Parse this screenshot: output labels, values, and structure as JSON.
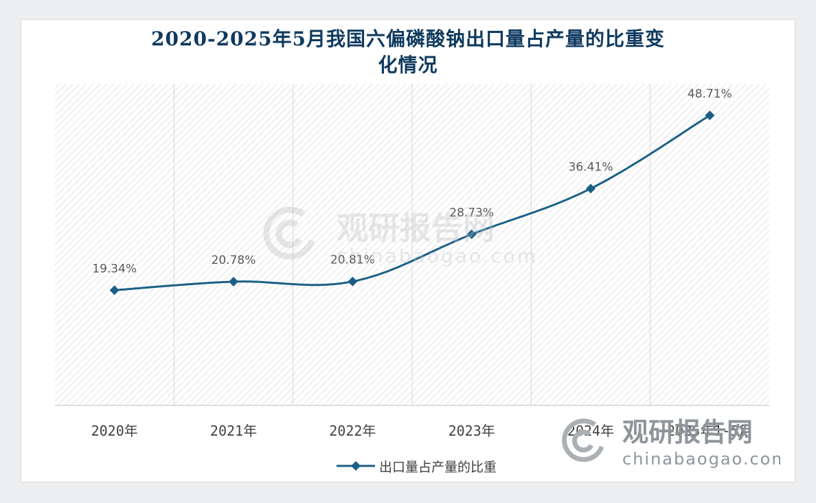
{
  "title_line1": "2020-2025年5月我国六偏磷酸钠出口量占产量的比重变",
  "title_line2": "化情况",
  "watermark": {
    "logo_text": "观研报告网",
    "url_text": "chinabaogao.com"
  },
  "colors": {
    "series": "#1b5f86",
    "title": "#0f3a5f"
  },
  "chart_data": {
    "type": "line",
    "title": "2020-2025年5月我国六偏磷酸钠出口量占产量的比重变化情况",
    "categories": [
      "2020年",
      "2021年",
      "2022年",
      "2023年",
      "2024年",
      "2025年1-5月"
    ],
    "series": [
      {
        "name": "出口量占产量的比重",
        "values": [
          19.34,
          20.78,
          20.81,
          28.73,
          36.41,
          48.71
        ],
        "labels": [
          "19.34%",
          "20.78%",
          "20.81%",
          "28.73%",
          "36.41%",
          "48.71%"
        ]
      }
    ],
    "unit": "%",
    "ylim": [
      0,
      54
    ],
    "grid": "vertical-separators",
    "legend_position": "bottom",
    "marker": "diamond",
    "smooth": true
  }
}
